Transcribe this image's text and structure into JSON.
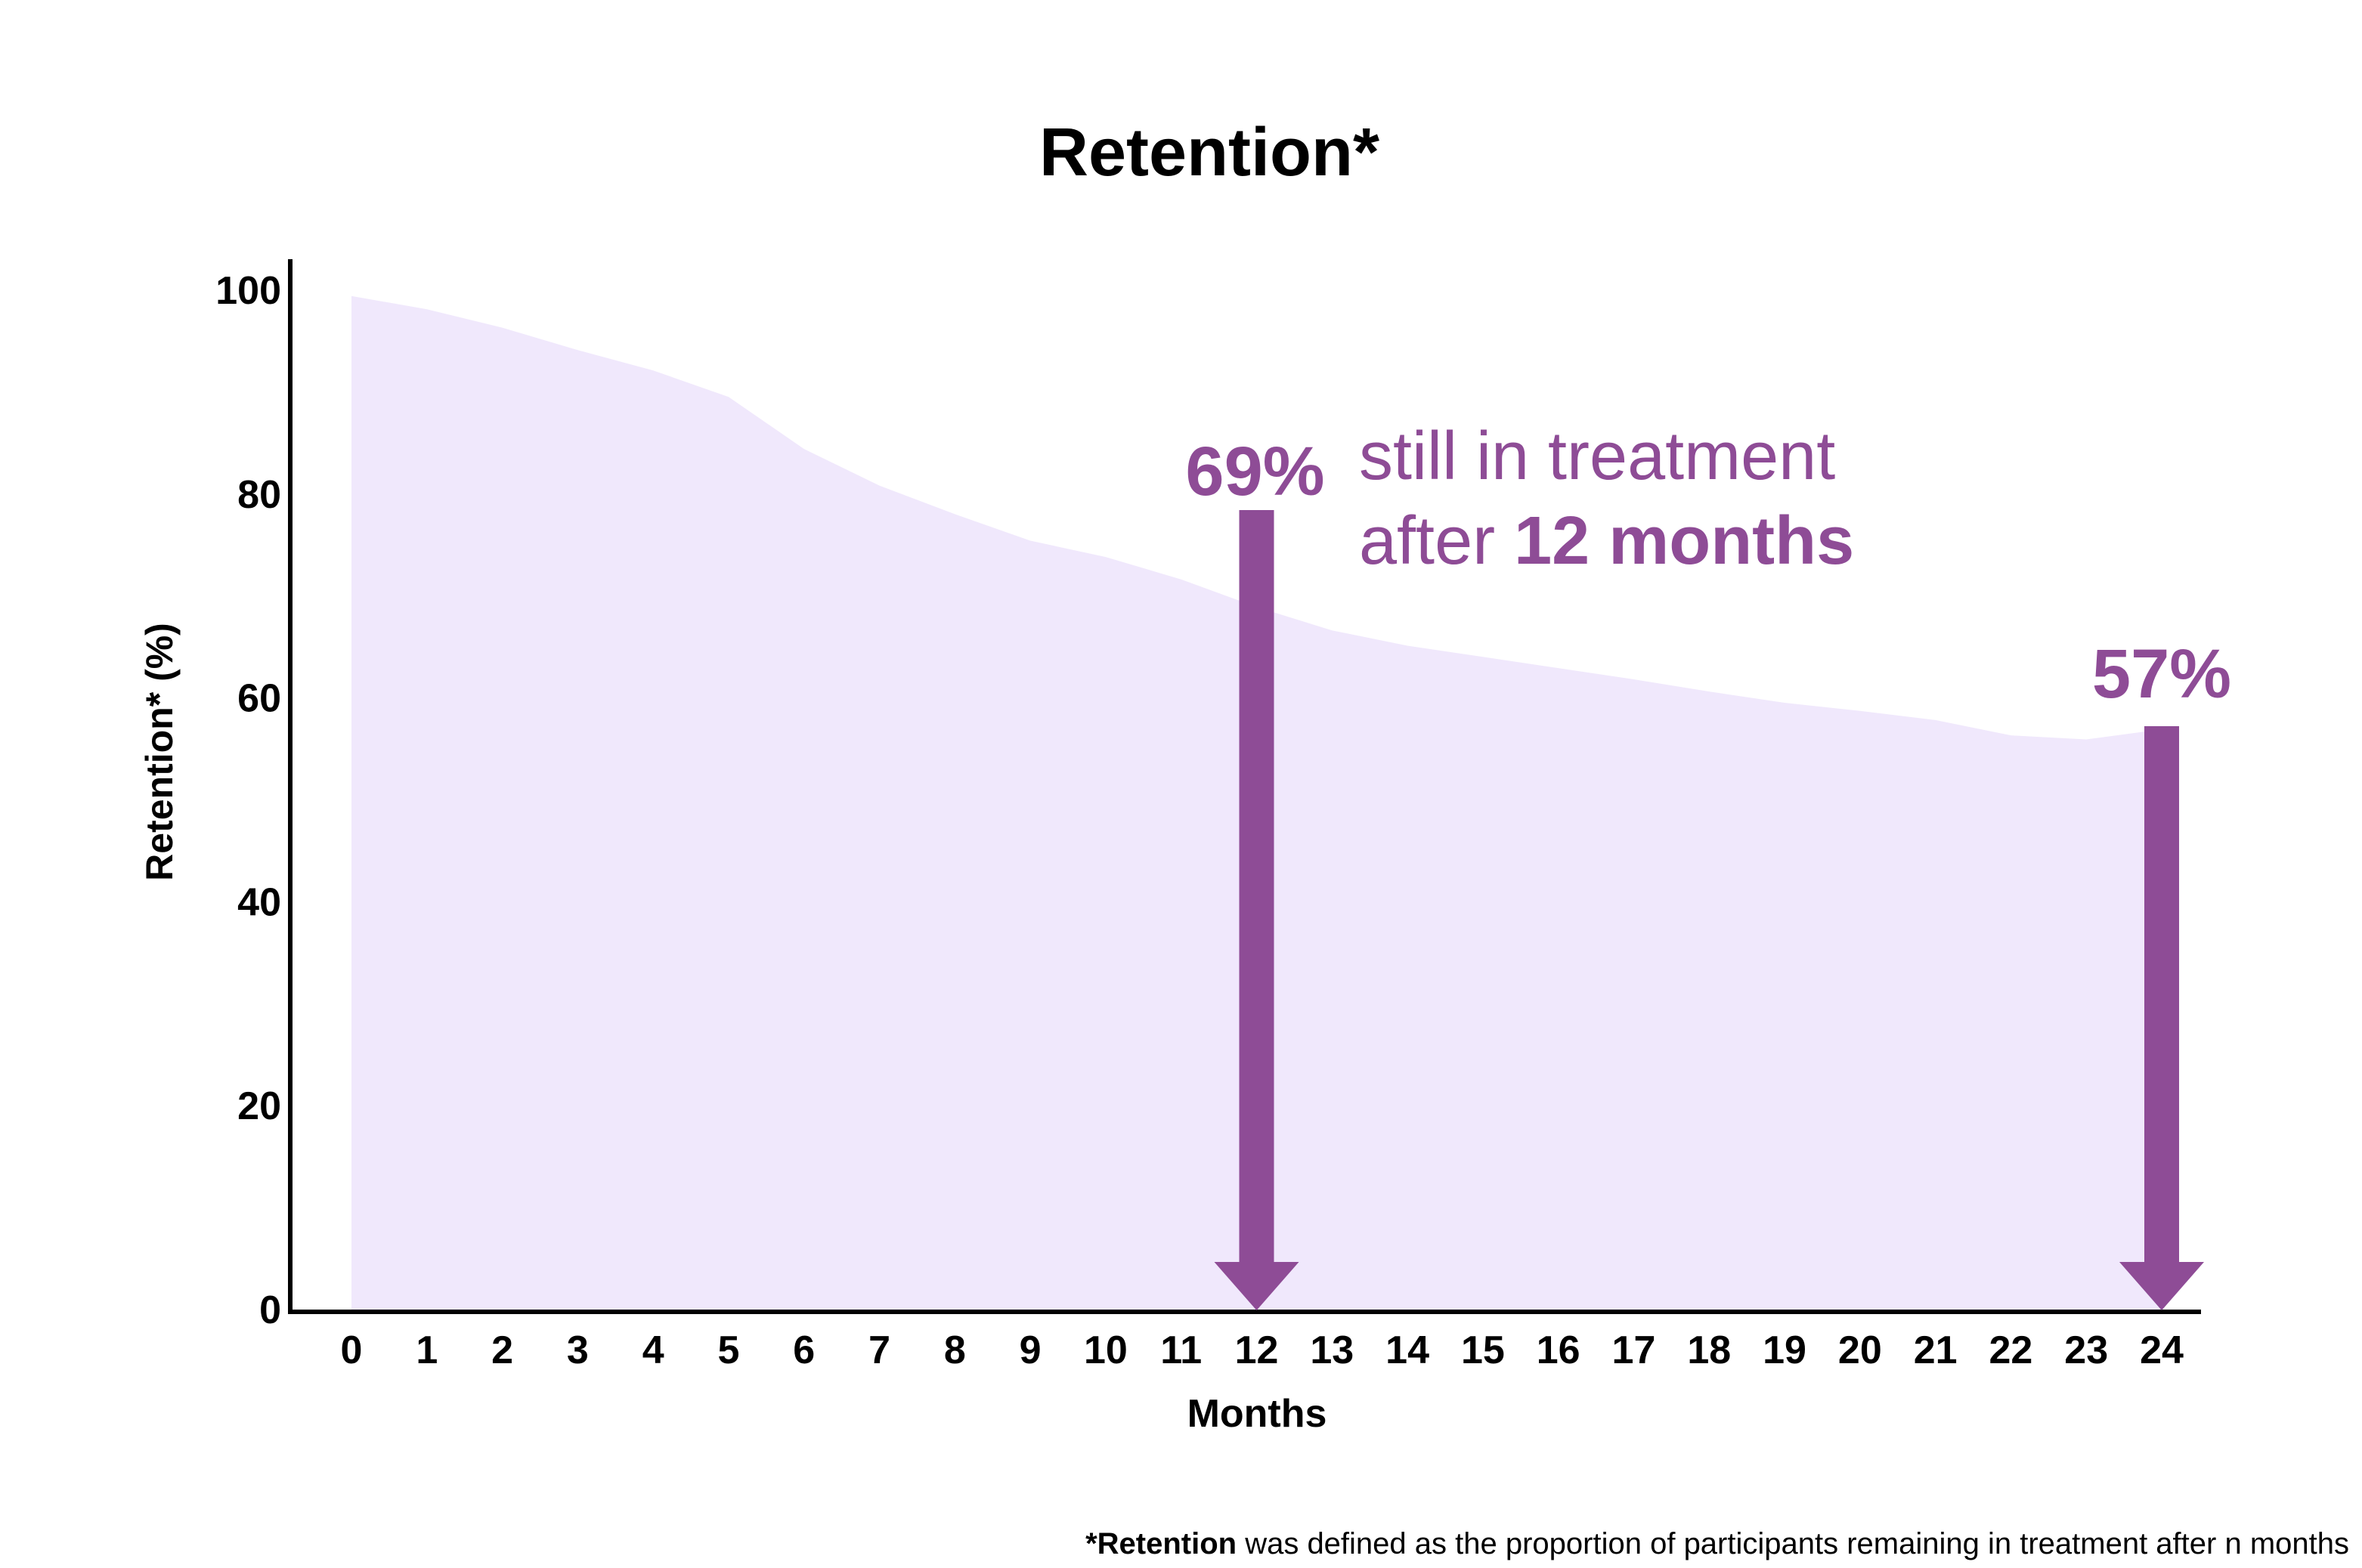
{
  "chart_data": {
    "type": "area",
    "title": "Retention*",
    "xlabel": "Months",
    "ylabel": "Retention* (%)",
    "x": [
      0,
      1,
      2,
      3,
      4,
      5,
      6,
      7,
      8,
      9,
      10,
      11,
      12,
      13,
      14,
      15,
      16,
      17,
      18,
      19,
      20,
      21,
      22,
      23,
      24
    ],
    "x_tick_labels": [
      "0",
      "1",
      "2",
      "3",
      "4",
      "5",
      "6",
      "7",
      "8",
      "9",
      "10",
      "11",
      "12",
      "13",
      "14",
      "15",
      "16",
      "17",
      "18",
      "19",
      "20",
      "21",
      "22",
      "23",
      "24"
    ],
    "y_ticks": [
      0,
      20,
      40,
      60,
      80,
      100
    ],
    "y_tick_labels": [
      "0",
      "20",
      "40",
      "60",
      "80",
      "100"
    ],
    "xlim": [
      -0.8,
      24.5
    ],
    "ylim": [
      0,
      103
    ],
    "series": [
      {
        "values": [
          99.5,
          98.2,
          96.4,
          94.2,
          92.2,
          89.6,
          84.5,
          80.9,
          78.1,
          75.5,
          73.9,
          71.7,
          69.0,
          66.7,
          65.2,
          64.1,
          63.0,
          61.9,
          60.7,
          59.6,
          58.8,
          57.9,
          56.4,
          56.0,
          57.0
        ],
        "color": "#f0e8fc"
      }
    ],
    "grid": false,
    "legend": "none",
    "accent_color": "#8e4c96",
    "annotations": [
      {
        "x": 12,
        "y": 78.5,
        "value_label": "69%",
        "text_line1": "still in treatment",
        "text_line2_prefix": "after ",
        "text_line2_bold": "12 months"
      },
      {
        "x": 24,
        "y": 57.3,
        "value_label": "57%"
      }
    ],
    "footnote_bold": "*Retention",
    "footnote_rest": " was defined as the proportion of participants remaining in treatment after n months"
  }
}
